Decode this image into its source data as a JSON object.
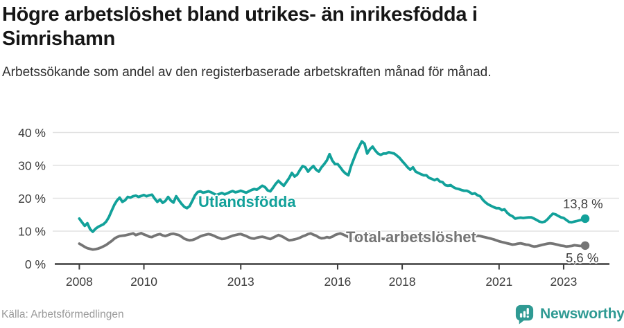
{
  "header": {},
  "footer": {
    "source": "Källa: Arbetsförmedlingen",
    "brand": "Newsworthy",
    "brand_color": "#2f9a93"
  },
  "colors": {
    "teal_line": "#12a19a",
    "gray_line": "#757575",
    "gridline": "#e2e2e2",
    "axis": "#3d3d3d",
    "tick_text": "#3d3d3d"
  },
  "chart_data": {
    "type": "line",
    "title": "Högre arbetslöshet bland utrikes- än inrikesfödda i Simrishamn",
    "subtitle": "Arbetssökande som andel av den registerbaserade arbetskraften månad för månad.",
    "x_unit": "month",
    "start": "2008-01",
    "end": "2023-09",
    "xlim": [
      2008.0,
      2023.67
    ],
    "ylim": [
      0,
      42
    ],
    "grid": "horizontal",
    "legend_position": "inline-on-line",
    "x_tick_years": [
      2008,
      2010,
      2013,
      2016,
      2018,
      2021,
      2023
    ],
    "y_ticks": [
      0,
      10,
      20,
      30,
      40
    ],
    "y_tick_suffix": " %",
    "series": [
      {
        "name": "Utlandsfödda",
        "color": "#12a19a",
        "end_label": "13,8 %",
        "last_value": 13.8,
        "values": [
          13.8,
          12.7,
          11.6,
          12.4,
          10.6,
          9.8,
          10.7,
          11.3,
          11.7,
          12.1,
          12.9,
          14.3,
          16.2,
          18.0,
          19.3,
          20.2,
          18.9,
          19.4,
          20.4,
          20.2,
          20.6,
          20.8,
          20.4,
          20.7,
          21.0,
          20.6,
          20.9,
          21.1,
          19.9,
          18.9,
          19.6,
          18.6,
          19.2,
          20.4,
          19.3,
          18.7,
          20.6,
          19.4,
          18.3,
          17.4,
          17.0,
          17.6,
          19.2,
          20.9,
          21.9,
          22.1,
          21.7,
          21.9,
          22.1,
          21.8,
          21.4,
          21.0,
          21.3,
          21.6,
          21.2,
          21.5,
          21.9,
          22.2,
          21.8,
          22.0,
          22.3,
          22.0,
          21.7,
          22.1,
          22.5,
          22.8,
          22.6,
          23.2,
          23.8,
          23.4,
          22.4,
          22.1,
          23.2,
          24.4,
          25.3,
          24.5,
          23.8,
          25.0,
          26.2,
          27.7,
          26.6,
          27.2,
          28.6,
          29.8,
          29.4,
          28.1,
          29.1,
          29.8,
          28.7,
          28.1,
          29.4,
          30.4,
          31.5,
          33.4,
          31.5,
          30.4,
          30.4,
          29.4,
          28.3,
          27.5,
          27.0,
          29.8,
          31.9,
          34.0,
          35.7,
          37.3,
          36.6,
          33.6,
          34.9,
          35.7,
          34.5,
          33.6,
          33.2,
          33.6,
          33.6,
          34.0,
          33.8,
          33.6,
          33.0,
          32.3,
          31.3,
          30.4,
          29.4,
          28.7,
          29.4,
          28.1,
          27.7,
          27.3,
          27.0,
          27.0,
          26.2,
          25.9,
          25.5,
          25.9,
          25.1,
          24.9,
          24.0,
          23.8,
          24.0,
          23.4,
          23.0,
          22.8,
          22.5,
          22.3,
          22.3,
          21.9,
          21.3,
          21.5,
          20.9,
          20.6,
          19.5,
          18.7,
          18.1,
          17.7,
          17.3,
          17.0,
          17.0,
          16.4,
          16.6,
          15.6,
          14.9,
          14.5,
          13.8,
          14.0,
          14.1,
          14.0,
          14.1,
          14.2,
          14.2,
          13.8,
          13.4,
          12.9,
          12.7,
          12.9,
          13.6,
          14.5,
          15.3,
          15.1,
          14.6,
          14.2,
          14.0,
          13.4,
          12.8,
          12.7,
          12.9,
          13.1,
          13.3,
          13.5,
          13.8
        ]
      },
      {
        "name": "Total arbetslöshet",
        "color": "#757575",
        "end_label": "5,6 %",
        "last_value": 5.6,
        "values": [
          6.2,
          5.7,
          5.2,
          4.8,
          4.6,
          4.4,
          4.5,
          4.7,
          5.0,
          5.4,
          5.8,
          6.4,
          7.0,
          7.7,
          8.2,
          8.5,
          8.6,
          8.7,
          8.9,
          9.1,
          9.3,
          8.8,
          9.1,
          9.4,
          9.0,
          8.7,
          8.3,
          8.2,
          8.6,
          8.9,
          9.1,
          8.7,
          8.5,
          8.8,
          9.1,
          9.2,
          9.0,
          8.8,
          8.3,
          7.7,
          7.4,
          7.2,
          7.3,
          7.6,
          8.0,
          8.4,
          8.7,
          8.9,
          9.1,
          8.9,
          8.6,
          8.2,
          7.9,
          7.6,
          7.7,
          8.0,
          8.3,
          8.6,
          8.8,
          9.0,
          9.1,
          8.8,
          8.5,
          8.1,
          7.8,
          7.7,
          8.0,
          8.2,
          8.3,
          8.1,
          7.8,
          7.6,
          8.0,
          8.4,
          8.8,
          8.5,
          8.1,
          7.6,
          7.2,
          7.3,
          7.5,
          7.7,
          8.0,
          8.4,
          8.7,
          9.1,
          9.3,
          8.9,
          8.6,
          8.1,
          7.8,
          7.9,
          8.2,
          8.0,
          8.3,
          8.8,
          9.1,
          9.3,
          9.0,
          8.6,
          8.2,
          7.9,
          7.7,
          7.9,
          8.2,
          8.5,
          8.8,
          9.0,
          9.0,
          8.8,
          8.5,
          8.1,
          7.8,
          7.6,
          7.7,
          7.9,
          8.1,
          8.3,
          8.4,
          8.5,
          8.4,
          8.2,
          7.9,
          7.6,
          7.3,
          7.1,
          7.2,
          7.4,
          7.6,
          7.7,
          7.8,
          7.9,
          7.8,
          7.6,
          7.4,
          7.2,
          7.1,
          7.0,
          7.2,
          7.3,
          7.5,
          7.6,
          7.7,
          7.8,
          7.9,
          7.8,
          8.0,
          8.4,
          8.6,
          8.5,
          8.3,
          8.1,
          7.9,
          7.7,
          7.5,
          7.2,
          6.9,
          6.7,
          6.5,
          6.3,
          6.1,
          5.9,
          6.0,
          6.2,
          6.3,
          6.1,
          5.9,
          5.8,
          5.5,
          5.3,
          5.4,
          5.6,
          5.8,
          6.0,
          6.2,
          6.3,
          6.2,
          6.0,
          5.8,
          5.6,
          5.5,
          5.3,
          5.4,
          5.5,
          5.7,
          5.6,
          5.5,
          5.5,
          5.6
        ]
      }
    ]
  }
}
